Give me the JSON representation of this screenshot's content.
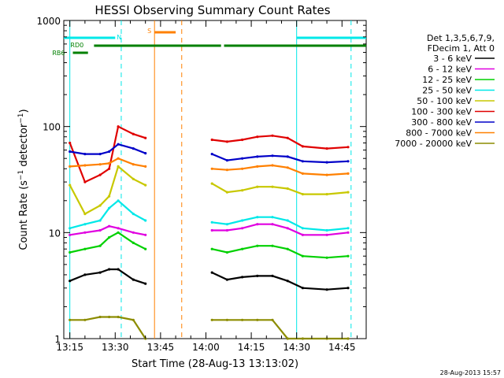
{
  "chart_data": {
    "type": "line",
    "title": "HESSI Observing Summary Count Rates",
    "xlabel": "Start Time (28-Aug-13 13:13:02)",
    "ylabel": "Count Rate (s⁻¹ detector⁻¹)",
    "ylabel_parts": [
      "Count Rate (s",
      "−1",
      " detector",
      "−1",
      ")"
    ],
    "yscale": "log",
    "xlim": [
      "13:13",
      "14:53"
    ],
    "ylim": [
      1,
      1000
    ],
    "x_ticks": [
      "13:15",
      "13:30",
      "13:45",
      "14:00",
      "14:15",
      "14:30",
      "14:45"
    ],
    "y_ticks": [
      "1",
      "10",
      "100",
      "1000"
    ],
    "legend_header": [
      "Det 1,3,5,6,7,9,",
      "FDecim 1, Att 0"
    ],
    "legend_placement": "right",
    "series": [
      {
        "name": "3 - 6 keV",
        "color": "#000000",
        "x": [
          "13:15",
          "13:20",
          "13:25",
          "13:28",
          "13:31",
          "13:36",
          "13:40",
          "14:02",
          "14:07",
          "14:12",
          "14:17",
          "14:22",
          "14:27",
          "14:32",
          "14:40",
          "14:47"
        ],
        "y": [
          3.5,
          4.0,
          4.2,
          4.5,
          4.5,
          3.6,
          3.3,
          4.2,
          3.6,
          3.8,
          3.9,
          3.9,
          3.5,
          3.0,
          2.9,
          3.0
        ]
      },
      {
        "name": "6 - 12 keV",
        "color": "#e000e0",
        "x": [
          "13:15",
          "13:20",
          "13:25",
          "13:28",
          "13:31",
          "13:36",
          "13:40",
          "14:02",
          "14:07",
          "14:12",
          "14:17",
          "14:22",
          "14:27",
          "14:32",
          "14:40",
          "14:47"
        ],
        "y": [
          9.5,
          10,
          10.5,
          11.5,
          11,
          10,
          9.5,
          10.5,
          10.5,
          11,
          12,
          12,
          11,
          9.5,
          9.5,
          10
        ]
      },
      {
        "name": "12 - 25 keV",
        "color": "#00d000",
        "x": [
          "13:15",
          "13:20",
          "13:25",
          "13:28",
          "13:31",
          "13:36",
          "13:40",
          "14:02",
          "14:07",
          "14:12",
          "14:17",
          "14:22",
          "14:27",
          "14:32",
          "14:40",
          "14:47"
        ],
        "y": [
          6.5,
          7,
          7.5,
          9,
          10,
          8,
          7,
          7,
          6.5,
          7,
          7.5,
          7.5,
          7,
          6,
          5.8,
          6
        ]
      },
      {
        "name": "25 - 50 keV",
        "color": "#00e8e8",
        "x": [
          "13:15",
          "13:20",
          "13:25",
          "13:28",
          "13:31",
          "13:36",
          "13:40",
          "14:02",
          "14:07",
          "14:12",
          "14:17",
          "14:22",
          "14:27",
          "14:32",
          "14:40",
          "14:47"
        ],
        "y": [
          11,
          12,
          13,
          17,
          20,
          15,
          13,
          12.5,
          12,
          13,
          14,
          14,
          13,
          11,
          10.5,
          11
        ]
      },
      {
        "name": "50 - 100 keV",
        "color": "#c8c800",
        "x": [
          "13:15",
          "13:20",
          "13:25",
          "13:28",
          "13:31",
          "13:36",
          "13:40",
          "14:02",
          "14:07",
          "14:12",
          "14:17",
          "14:22",
          "14:27",
          "14:32",
          "14:40",
          "14:47"
        ],
        "y": [
          28,
          15,
          18,
          22,
          42,
          32,
          28,
          29,
          24,
          25,
          27,
          27,
          26,
          23,
          23,
          24
        ]
      },
      {
        "name": "100 - 300 keV",
        "color": "#e00000",
        "x": [
          "13:15",
          "13:20",
          "13:25",
          "13:28",
          "13:31",
          "13:36",
          "13:40",
          "14:02",
          "14:07",
          "14:12",
          "14:17",
          "14:22",
          "14:27",
          "14:32",
          "14:40",
          "14:47"
        ],
        "y": [
          70,
          30,
          35,
          40,
          100,
          85,
          78,
          75,
          72,
          75,
          80,
          82,
          78,
          65,
          62,
          64
        ]
      },
      {
        "name": "300 - 800 keV",
        "color": "#0000c8",
        "x": [
          "13:15",
          "13:20",
          "13:25",
          "13:28",
          "13:31",
          "13:36",
          "13:40",
          "14:02",
          "14:07",
          "14:12",
          "14:17",
          "14:22",
          "14:27",
          "14:32",
          "14:40",
          "14:47"
        ],
        "y": [
          58,
          55,
          55,
          58,
          68,
          62,
          56,
          55,
          48,
          50,
          52,
          53,
          52,
          47,
          46,
          47
        ]
      },
      {
        "name": "800 - 7000 keV",
        "color": "#ff8000",
        "x": [
          "13:15",
          "13:20",
          "13:25",
          "13:28",
          "13:31",
          "13:36",
          "13:40",
          "14:02",
          "14:07",
          "14:12",
          "14:17",
          "14:22",
          "14:27",
          "14:32",
          "14:40",
          "14:47"
        ],
        "y": [
          42,
          43,
          44,
          45,
          50,
          44,
          42,
          40,
          39,
          40,
          42,
          43,
          41,
          36,
          35,
          36
        ]
      },
      {
        "name": "7000 - 20000 keV",
        "color": "#8c8c00",
        "x": [
          "13:15",
          "13:20",
          "13:25",
          "13:28",
          "13:31",
          "13:36",
          "13:40",
          "14:02",
          "14:07",
          "14:12",
          "14:17",
          "14:22",
          "14:27",
          "14:32",
          "14:40",
          "14:47"
        ],
        "y": [
          1.5,
          1.5,
          1.6,
          1.6,
          1.6,
          1.5,
          1.0,
          1.5,
          1.5,
          1.5,
          1.5,
          1.5,
          1.0,
          1.0,
          1.0,
          1.0
        ]
      }
    ],
    "flag_bars": [
      {
        "label": "N",
        "color": "#00e8e8",
        "segments": [
          [
            "13:13",
            "13:30"
          ],
          [
            "14:30",
            "14:53"
          ]
        ]
      },
      {
        "label": "S",
        "color": "#ff8000",
        "segments": [
          [
            "13:43",
            "13:50"
          ]
        ]
      },
      {
        "label": "RD0",
        "color": "#008000",
        "segments": [
          [
            "13:23",
            "14:05"
          ],
          [
            "14:06",
            "14:53"
          ]
        ]
      },
      {
        "label": "RB6",
        "color": "#008000",
        "segments": [
          [
            "13:16",
            "13:21"
          ]
        ]
      }
    ],
    "vertical_lines": [
      {
        "x": "13:15",
        "color": "#00e8e8",
        "style": "solid"
      },
      {
        "x": "13:32",
        "color": "#00e8e8",
        "style": "dashed"
      },
      {
        "x": "13:43",
        "color": "#ff8000",
        "style": "solid"
      },
      {
        "x": "13:52",
        "color": "#ff8000",
        "style": "dashed"
      },
      {
        "x": "14:30",
        "color": "#00e8e8",
        "style": "solid"
      },
      {
        "x": "14:48",
        "color": "#00e8e8",
        "style": "dashed"
      }
    ],
    "gaps": [
      [
        "13:41",
        "14:00"
      ]
    ]
  },
  "timestamp": "28-Aug-2013 15:57"
}
